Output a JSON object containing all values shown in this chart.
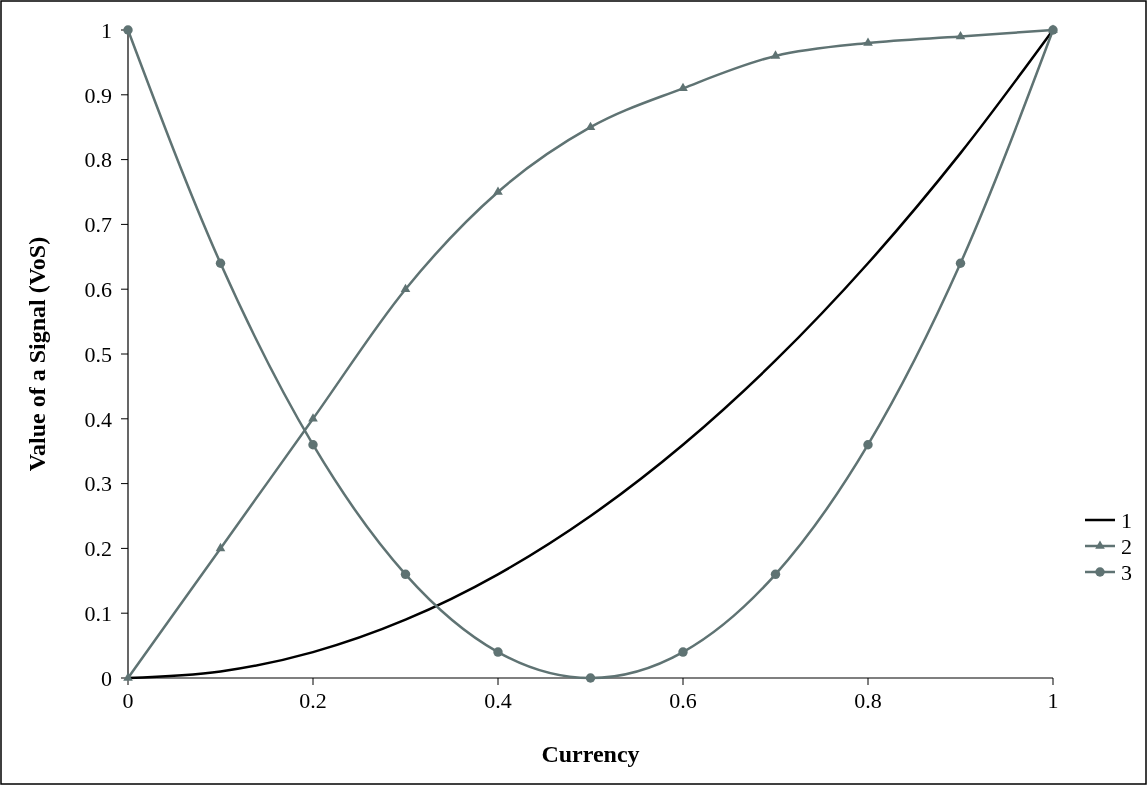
{
  "chart_data": {
    "type": "line",
    "xlabel": "Currency",
    "ylabel": "Value of a Signal (VoS)",
    "x": [
      0,
      0.1,
      0.2,
      0.3,
      0.4,
      0.5,
      0.6,
      0.7,
      0.8,
      0.9,
      1
    ],
    "series": [
      {
        "name": "1",
        "color": "#000000",
        "marker": "none",
        "values": [
          0,
          0.01,
          0.04,
          0.09,
          0.16,
          0.25,
          0.36,
          0.49,
          0.64,
          0.81,
          1
        ]
      },
      {
        "name": "2",
        "color": "#5f7373",
        "marker": "triangle",
        "values": [
          0,
          0.2,
          0.4,
          0.6,
          0.75,
          0.85,
          0.91,
          0.96,
          0.98,
          0.99,
          1
        ]
      },
      {
        "name": "3",
        "color": "#5f7373",
        "marker": "circle",
        "values": [
          1,
          0.64,
          0.36,
          0.16,
          0.04,
          0,
          0.04,
          0.16,
          0.36,
          0.64,
          1
        ]
      }
    ],
    "xlim": [
      0,
      1
    ],
    "xticks": [
      0,
      0.2,
      0.4,
      0.6,
      0.8,
      1
    ],
    "ylim": [
      0,
      1
    ],
    "yticks": [
      0,
      0.1,
      0.2,
      0.3,
      0.4,
      0.5,
      0.6,
      0.7,
      0.8,
      0.9,
      1
    ],
    "grid": false,
    "legend": "right",
    "line_style": "solid"
  }
}
